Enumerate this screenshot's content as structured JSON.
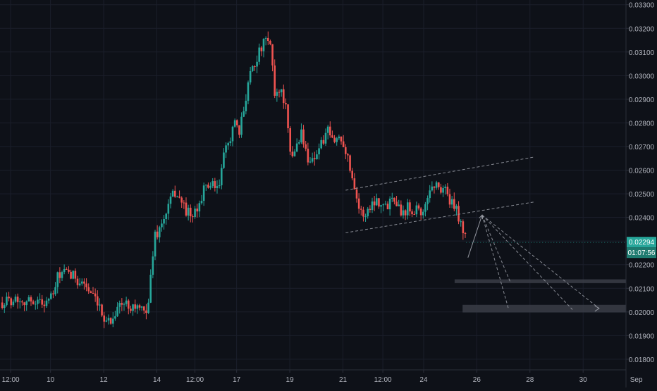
{
  "colors": {
    "background": "#0e1118",
    "grid": "#1b1f2b",
    "axis_text": "#b2b5be",
    "up": "#26a69a",
    "down": "#ef5350",
    "drawing": "#9598a1",
    "zone": "#3a3d46",
    "price_tag": "#26a69a",
    "countdown_tag": "#1e7a6f"
  },
  "chart_data": {
    "type": "candlestick",
    "xlabel": "",
    "ylabel": "",
    "x_range": [
      0,
      70
    ],
    "ylim": [
      0.01755,
      0.0332
    ],
    "y_ticks": [
      "0.01800",
      "0.01900",
      "0.02000",
      "0.02100",
      "0.02200",
      "0.02300",
      "0.02400",
      "0.02500",
      "0.02600",
      "0.02700",
      "0.02800",
      "0.02900",
      "0.03000",
      "0.03100",
      "0.03200",
      "0.03300"
    ],
    "x_ticks": [
      {
        "label": "12:00",
        "x": 1.2
      },
      {
        "label": "10",
        "x": 5.7
      },
      {
        "label": "12",
        "x": 11.7
      },
      {
        "label": "14",
        "x": 17.7
      },
      {
        "label": "12:00",
        "x": 22.0
      },
      {
        "label": "17",
        "x": 26.7
      },
      {
        "label": "19",
        "x": 32.7
      },
      {
        "label": "21",
        "x": 38.7
      },
      {
        "label": "12:00",
        "x": 43.2
      },
      {
        "label": "24",
        "x": 47.8
      },
      {
        "label": "26",
        "x": 53.8
      },
      {
        "label": "28",
        "x": 59.8
      },
      {
        "label": "30",
        "x": 65.8
      },
      {
        "label": "Sep",
        "x": 71.8
      }
    ],
    "last_price": "0.02294",
    "countdown": "01:07:56",
    "close_path": [
      [
        0.0,
        0.0204
      ],
      [
        0.8,
        0.02045
      ],
      [
        1.6,
        0.0206
      ],
      [
        2.4,
        0.02052
      ],
      [
        3.2,
        0.02045
      ],
      [
        4.0,
        0.0205
      ],
      [
        4.8,
        0.02038
      ],
      [
        5.4,
        0.0205
      ],
      [
        6.0,
        0.0207
      ],
      [
        6.6,
        0.0216
      ],
      [
        7.2,
        0.02165
      ],
      [
        7.8,
        0.02155
      ],
      [
        8.4,
        0.0215
      ],
      [
        9.0,
        0.0213
      ],
      [
        9.6,
        0.0212
      ],
      [
        10.2,
        0.02075
      ],
      [
        10.8,
        0.0204
      ],
      [
        11.4,
        0.01995
      ],
      [
        12.0,
        0.0197
      ],
      [
        12.6,
        0.0196
      ],
      [
        13.2,
        0.02025
      ],
      [
        13.8,
        0.0203
      ],
      [
        14.4,
        0.02035
      ],
      [
        15.0,
        0.02025
      ],
      [
        15.6,
        0.0202
      ],
      [
        16.2,
        0.0199
      ],
      [
        16.8,
        0.0205
      ],
      [
        17.4,
        0.0232
      ],
      [
        18.0,
        0.0235
      ],
      [
        18.6,
        0.024
      ],
      [
        19.2,
        0.0247
      ],
      [
        19.8,
        0.0251
      ],
      [
        20.4,
        0.0247
      ],
      [
        21.0,
        0.0243
      ],
      [
        21.6,
        0.024
      ],
      [
        22.2,
        0.0242
      ],
      [
        22.8,
        0.025
      ],
      [
        23.4,
        0.0254
      ],
      [
        24.0,
        0.0253
      ],
      [
        24.6,
        0.0251
      ],
      [
        25.2,
        0.0265
      ],
      [
        25.8,
        0.0272
      ],
      [
        26.4,
        0.028
      ],
      [
        27.0,
        0.0275
      ],
      [
        27.6,
        0.0288
      ],
      [
        28.2,
        0.0302
      ],
      [
        28.8,
        0.0306
      ],
      [
        29.4,
        0.0311
      ],
      [
        30.0,
        0.0315
      ],
      [
        30.6,
        0.0312
      ],
      [
        31.0,
        0.0292
      ],
      [
        31.6,
        0.0295
      ],
      [
        32.2,
        0.0288
      ],
      [
        32.8,
        0.0264
      ],
      [
        33.4,
        0.027
      ],
      [
        34.0,
        0.0276
      ],
      [
        34.6,
        0.0266
      ],
      [
        35.2,
        0.0264
      ],
      [
        35.8,
        0.0268
      ],
      [
        36.4,
        0.0272
      ],
      [
        37.0,
        0.0276
      ],
      [
        37.6,
        0.0272
      ],
      [
        38.2,
        0.0274
      ],
      [
        38.8,
        0.0272
      ],
      [
        39.4,
        0.0262
      ],
      [
        40.0,
        0.0254
      ],
      [
        40.6,
        0.0242
      ],
      [
        41.2,
        0.0241
      ],
      [
        41.8,
        0.0245
      ],
      [
        42.4,
        0.0248
      ],
      [
        43.0,
        0.0246
      ],
      [
        43.6,
        0.0244
      ],
      [
        44.2,
        0.025
      ],
      [
        44.8,
        0.0247
      ],
      [
        45.4,
        0.0241
      ],
      [
        46.0,
        0.0245
      ],
      [
        46.6,
        0.0243
      ],
      [
        47.2,
        0.0245
      ],
      [
        47.8,
        0.024
      ],
      [
        48.4,
        0.0252
      ],
      [
        49.0,
        0.0254
      ],
      [
        49.6,
        0.0252
      ],
      [
        50.2,
        0.0253
      ],
      [
        50.8,
        0.0246
      ],
      [
        51.4,
        0.0244
      ],
      [
        52.0,
        0.0238
      ],
      [
        52.6,
        0.02294
      ]
    ],
    "channel": {
      "upper": [
        [
          39.0,
          0.02515
        ],
        [
          60.2,
          0.02655
        ]
      ],
      "lower": [
        [
          39.0,
          0.02335
        ],
        [
          60.2,
          0.02465
        ]
      ]
    },
    "projection": {
      "up_leg": [
        [
          52.8,
          0.0223
        ],
        [
          54.4,
          0.0241
        ]
      ],
      "targets": [
        [
          [
            54.4,
            0.0241
          ],
          [
            57.4,
            0.0201
          ]
        ],
        [
          [
            54.4,
            0.0241
          ],
          [
            57.6,
            0.02125
          ]
        ],
        [
          [
            54.4,
            0.0241
          ],
          [
            64.6,
            0.0201
          ]
        ],
        [
          [
            54.4,
            0.0241
          ],
          [
            67.6,
            0.02015
          ]
        ]
      ]
    },
    "zones": [
      {
        "y_top": 0.02138,
        "y_bottom": 0.02122,
        "x_start": 51.3
      },
      {
        "y_top": 0.0203,
        "y_bottom": 0.01998,
        "x_start": 52.2
      }
    ]
  }
}
